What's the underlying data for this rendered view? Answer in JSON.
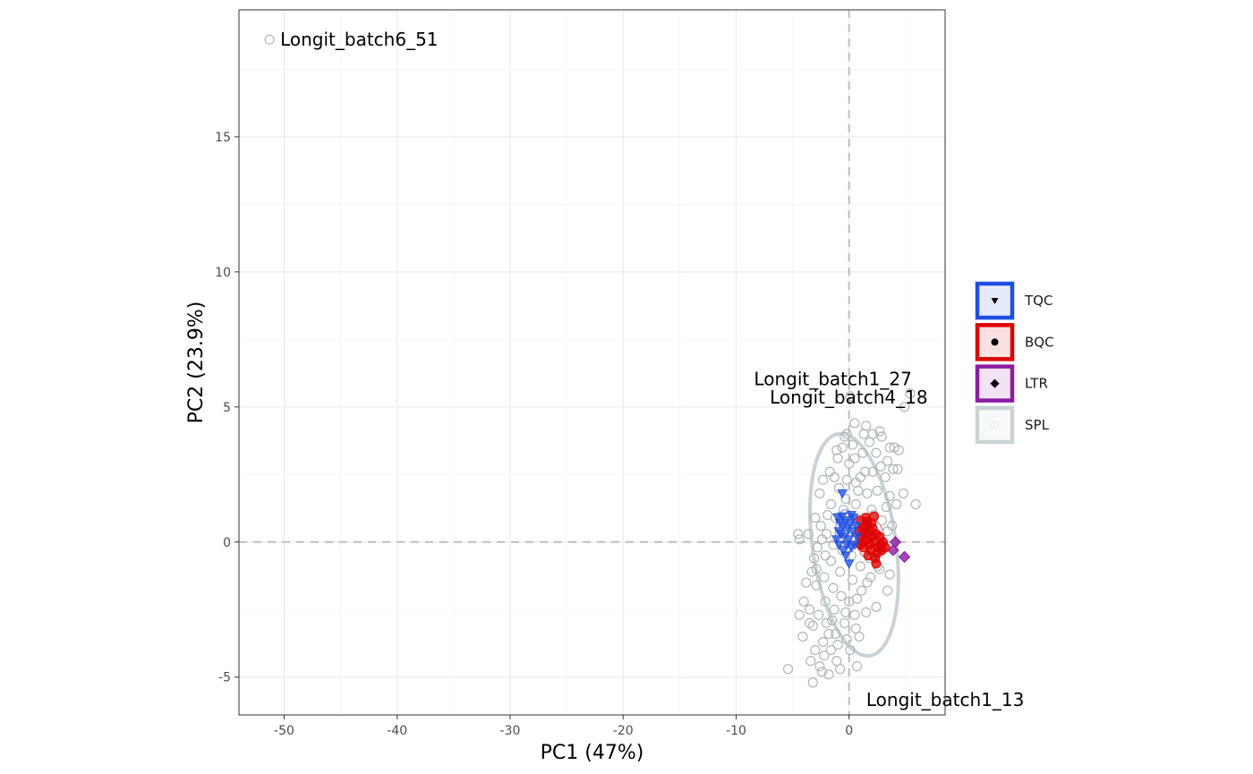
{
  "chart_data": {
    "type": "scatter",
    "title": "",
    "xlabel": "PC1 (47%)",
    "ylabel": "PC2 (23.9%)",
    "xlim": [
      -54,
      8.5
    ],
    "ylim": [
      -6.4,
      19.7
    ],
    "x_ticks": [
      -50,
      -40,
      -30,
      -20,
      -10,
      0
    ],
    "y_ticks": [
      -5,
      0,
      5,
      10,
      15
    ],
    "grid": true,
    "reference_lines": {
      "x": 0,
      "y": 0,
      "style": "dashed"
    },
    "legend_position": "right",
    "series": [
      {
        "name": "TQC",
        "color": "#1f4fe0",
        "marker": "triangle-down",
        "points": [
          [
            -0.6,
            1.8
          ],
          [
            -1.0,
            0.9
          ],
          [
            -0.8,
            0.7
          ],
          [
            -0.5,
            0.6
          ],
          [
            -0.3,
            0.8
          ],
          [
            -0.1,
            0.5
          ],
          [
            0.1,
            0.7
          ],
          [
            0.3,
            0.4
          ],
          [
            -0.7,
            0.3
          ],
          [
            -0.4,
            0.2
          ],
          [
            0.0,
            0.1
          ],
          [
            -0.9,
            0.4
          ],
          [
            -0.2,
            -0.1
          ],
          [
            0.2,
            -0.2
          ],
          [
            -0.5,
            -0.3
          ],
          [
            0.4,
            0.9
          ],
          [
            0.6,
            0.6
          ],
          [
            -1.1,
            0.1
          ],
          [
            0.5,
            -0.1
          ],
          [
            -0.3,
            -0.5
          ],
          [
            0.0,
            -0.8
          ],
          [
            0.7,
            0.2
          ],
          [
            -0.6,
            0.95
          ],
          [
            0.2,
            1.0
          ],
          [
            -0.9,
            -0.1
          ]
        ]
      },
      {
        "name": "BQC",
        "color": "#dd0000",
        "marker": "circle",
        "points": [
          [
            1.0,
            0.8
          ],
          [
            1.5,
            0.9
          ],
          [
            2.0,
            0.7
          ],
          [
            1.2,
            0.5
          ],
          [
            1.8,
            0.4
          ],
          [
            2.4,
            0.3
          ],
          [
            1.1,
            0.2
          ],
          [
            1.6,
            0.1
          ],
          [
            2.2,
            0.0
          ],
          [
            2.8,
            -0.1
          ],
          [
            1.3,
            -0.2
          ],
          [
            1.9,
            -0.3
          ],
          [
            2.5,
            -0.4
          ],
          [
            1.0,
            -0.1
          ],
          [
            1.4,
            0.3
          ],
          [
            2.1,
            0.5
          ],
          [
            2.7,
            0.2
          ],
          [
            3.0,
            0.0
          ],
          [
            1.7,
            -0.5
          ],
          [
            2.3,
            -0.6
          ],
          [
            0.9,
            0.4
          ],
          [
            1.5,
            0.6
          ],
          [
            2.0,
            0.2
          ],
          [
            2.6,
            -0.2
          ],
          [
            1.2,
            0.0
          ],
          [
            1.8,
            -0.1
          ],
          [
            2.9,
            -0.3
          ],
          [
            3.2,
            -0.2
          ],
          [
            2.4,
            -0.8
          ],
          [
            1.6,
            0.75
          ],
          [
            2.2,
            0.95
          ]
        ]
      },
      {
        "name": "LTR",
        "color": "#8b1ca3",
        "marker": "diamond",
        "points": [
          [
            4.1,
            0.0
          ],
          [
            3.9,
            -0.3
          ],
          [
            4.9,
            -0.55
          ]
        ]
      },
      {
        "name": "SPL",
        "color": "#aeb6b6",
        "marker": "circle-open",
        "points": [
          [
            -51.3,
            18.6
          ],
          [
            5.4,
            5.5
          ],
          [
            4.9,
            5.0
          ],
          [
            0.1,
            5.4
          ],
          [
            5.9,
            1.4
          ],
          [
            -4.5,
            0.3
          ],
          [
            -4.4,
            0.1
          ],
          [
            -5.4,
            -4.7
          ],
          [
            -3.2,
            -5.2
          ],
          [
            0.7,
            -4.6
          ],
          [
            -2.2,
            -4.2
          ],
          [
            -1.8,
            -3.4
          ],
          [
            -2.7,
            -2.7
          ],
          [
            -3.5,
            -2.5
          ],
          [
            -1.5,
            -2.9
          ],
          [
            -2.9,
            -1.6
          ],
          [
            -3.3,
            -1.1
          ],
          [
            -2.1,
            -0.5
          ],
          [
            -3.0,
            0.9
          ],
          [
            -2.5,
            0.6
          ],
          [
            -1.3,
            2.4
          ],
          [
            -1.0,
            3.1
          ],
          [
            -0.6,
            3.5
          ],
          [
            0.0,
            2.9
          ],
          [
            0.5,
            3.1
          ],
          [
            1.2,
            3.3
          ],
          [
            1.8,
            3.7
          ],
          [
            2.4,
            3.3
          ],
          [
            1.0,
            2.4
          ],
          [
            1.6,
            1.8
          ],
          [
            2.5,
            1.9
          ],
          [
            3.2,
            2.4
          ],
          [
            3.9,
            2.7
          ],
          [
            3.6,
            1.7
          ],
          [
            4.2,
            1.4
          ],
          [
            4.8,
            1.8
          ],
          [
            3.3,
            1.3
          ],
          [
            2.0,
            1.2
          ],
          [
            0.8,
            1.9
          ],
          [
            -0.3,
            1.6
          ],
          [
            -1.6,
            1.4
          ],
          [
            -2.6,
            1.8
          ],
          [
            -1.9,
            1.0
          ],
          [
            -3.6,
            0.3
          ],
          [
            -2.8,
            -0.2
          ],
          [
            -1.6,
            -0.7
          ],
          [
            -0.8,
            -1.1
          ],
          [
            0.3,
            -1.4
          ],
          [
            1.1,
            -1.8
          ],
          [
            1.9,
            -1.3
          ],
          [
            2.7,
            -1.0
          ],
          [
            3.6,
            -1.2
          ],
          [
            3.4,
            -1.8
          ],
          [
            2.4,
            -2.4
          ],
          [
            1.5,
            -2.6
          ],
          [
            0.5,
            -2.7
          ],
          [
            -0.4,
            -3.0
          ],
          [
            -1.2,
            -3.4
          ],
          [
            -2.3,
            -3.7
          ],
          [
            -3.0,
            -4.0
          ],
          [
            -3.4,
            -4.4
          ],
          [
            -2.6,
            -4.6
          ],
          [
            -1.1,
            -4.4
          ],
          [
            0.1,
            -4.0
          ],
          [
            0.9,
            -3.5
          ],
          [
            0.0,
            -2.2
          ],
          [
            -0.7,
            -2.0
          ],
          [
            -1.4,
            -1.7
          ],
          [
            -2.2,
            -1.3
          ],
          [
            -3.1,
            -0.6
          ],
          [
            -2.0,
            0.3
          ],
          [
            -1.2,
            0.9
          ],
          [
            -0.5,
            1.2
          ],
          [
            0.6,
            1.4
          ],
          [
            1.3,
            0.9
          ],
          [
            2.2,
            1.0
          ],
          [
            2.9,
            0.8
          ],
          [
            3.4,
            0.4
          ],
          [
            2.7,
            -0.4
          ],
          [
            1.8,
            -0.6
          ],
          [
            1.0,
            -0.9
          ],
          [
            0.2,
            -0.5
          ],
          [
            -0.6,
            -0.3
          ],
          [
            -1.4,
            -0.1
          ],
          [
            -2.4,
            0.1
          ],
          [
            -2.9,
            -1.0
          ],
          [
            -2.1,
            -2.2
          ],
          [
            -1.3,
            -2.5
          ],
          [
            -0.3,
            -2.6
          ],
          [
            0.7,
            -2.1
          ],
          [
            1.6,
            -1.5
          ],
          [
            2.5,
            -0.9
          ],
          [
            3.0,
            -0.2
          ],
          [
            3.8,
            0.6
          ],
          [
            4.0,
            3.5
          ],
          [
            3.4,
            3.0
          ],
          [
            2.8,
            2.8
          ],
          [
            2.1,
            2.6
          ],
          [
            1.4,
            2.6
          ],
          [
            0.6,
            2.2
          ],
          [
            -0.2,
            2.3
          ],
          [
            -0.9,
            2.0
          ],
          [
            -1.7,
            2.6
          ],
          [
            -2.3,
            2.3
          ],
          [
            -1.1,
            3.4
          ],
          [
            -0.4,
            3.9
          ],
          [
            0.3,
            3.6
          ],
          [
            1.3,
            4.0
          ],
          [
            2.1,
            4.0
          ],
          [
            2.9,
            3.9
          ],
          [
            3.6,
            3.5
          ],
          [
            0.5,
            4.4
          ],
          [
            1.5,
            4.3
          ],
          [
            2.7,
            4.1
          ],
          [
            -0.2,
            4.0
          ],
          [
            4.4,
            3.4
          ],
          [
            4.3,
            2.7
          ],
          [
            -3.8,
            -1.5
          ],
          [
            -4.0,
            -2.2
          ],
          [
            -3.2,
            -3.1
          ],
          [
            -4.1,
            -3.5
          ],
          [
            -3.5,
            -3.0
          ],
          [
            -2.0,
            -3.0
          ],
          [
            -1.0,
            -3.8
          ],
          [
            -0.2,
            -3.6
          ],
          [
            0.6,
            -3.2
          ],
          [
            -1.6,
            -4.0
          ],
          [
            -2.4,
            -4.8
          ],
          [
            -0.8,
            -4.7
          ],
          [
            -1.8,
            -4.9
          ],
          [
            -4.4,
            -2.7
          ]
        ]
      }
    ],
    "annotations": [
      {
        "text": "Longit_batch6_51",
        "x": -51.3,
        "y": 18.6,
        "anchor": "start"
      },
      {
        "text": "Longit_batch1_27",
        "x": 5.4,
        "y": 5.5,
        "anchor": "end"
      },
      {
        "text": "Longit_batch4_18",
        "x": 4.9,
        "y": 5.0,
        "anchor": "end"
      },
      {
        "text": "Longit_batch1_13",
        "x": -3.2,
        "y": -5.2,
        "anchor": "end"
      }
    ],
    "ellipses": [
      {
        "group": "SPL",
        "color": "#c9d3d6",
        "cx": 0.45,
        "cy": -0.1,
        "rx": 3.7,
        "ry": 4.15,
        "rot_deg": -8
      },
      {
        "group": "TQC",
        "color": "#1f4fe0",
        "cx": -0.3,
        "cy": 0.4,
        "rx": 0.9,
        "ry": 0.8,
        "rot_deg": 0
      },
      {
        "group": "BQC",
        "color": "#dd0000",
        "cx": 1.9,
        "cy": 0.1,
        "rx": 1.2,
        "ry": 0.75,
        "rot_deg": 0
      }
    ]
  }
}
